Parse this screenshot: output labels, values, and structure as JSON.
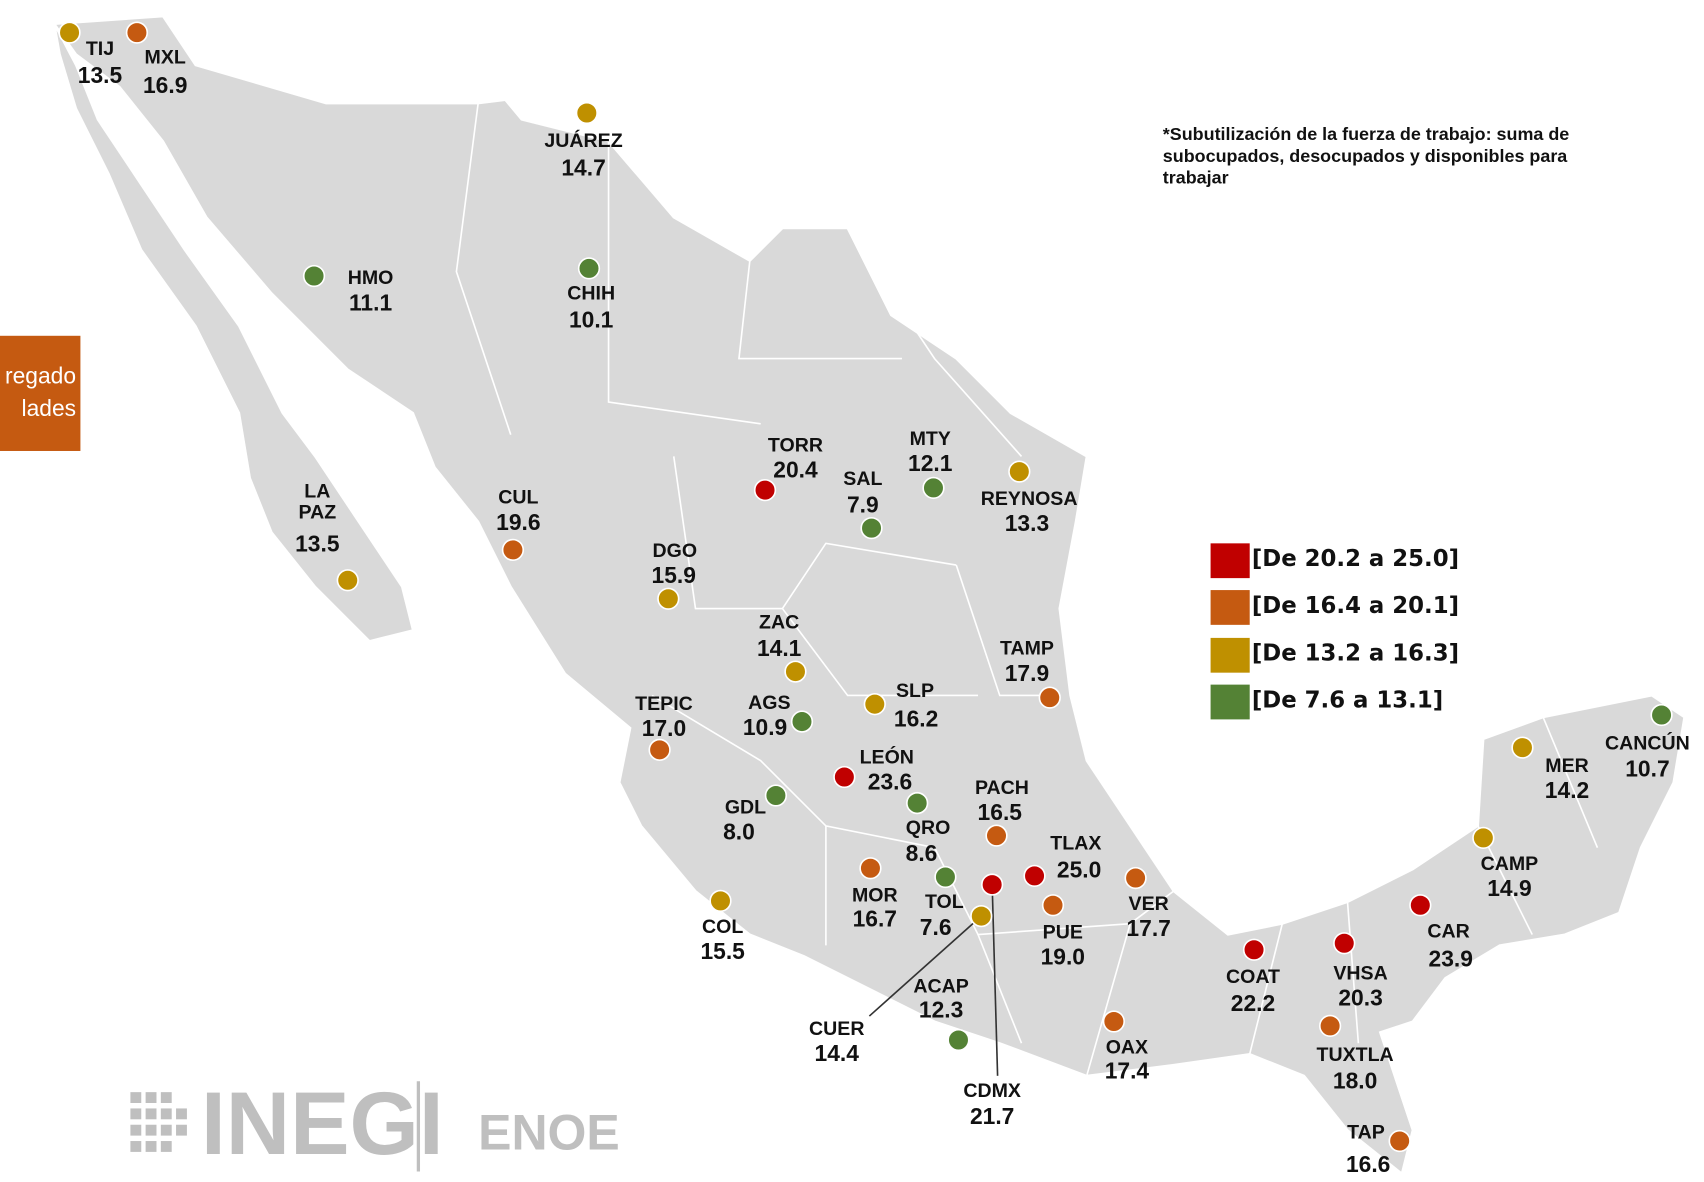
{
  "note": [
    "*Subutilización de la fuerza de trabajo: suma de",
    "subocupados, desocupados y disponibles para",
    "trabajar"
  ],
  "side_box": [
    "regado",
    "lades"
  ],
  "logo": {
    "brand": "INEGI",
    "survey": "ENOE"
  },
  "legend": [
    {
      "label": "[De 20.2 a 25.0]",
      "color": "#c00000"
    },
    {
      "label": "[De 16.4 a 20.1]",
      "color": "#c55a11"
    },
    {
      "label": "[De 13.2 a 16.3]",
      "color": "#bf9000"
    },
    {
      "label": "[De 7.6 a 13.1]",
      "color": "#548235"
    }
  ],
  "cities": [
    {
      "name": "TIJ",
      "value": "13.5",
      "range": 2
    },
    {
      "name": "MXL",
      "value": "16.9",
      "range": 1
    },
    {
      "name": "JUÁREZ",
      "value": "14.7",
      "range": 2
    },
    {
      "name": "HMO",
      "value": "11.1",
      "range": 3
    },
    {
      "name": "CHIH",
      "value": "10.1",
      "range": 3
    },
    {
      "name": "LA PAZ",
      "value": "13.5",
      "range": 2
    },
    {
      "name": "CUL",
      "value": "19.6",
      "range": 1
    },
    {
      "name": "TORR",
      "value": "20.4",
      "range": 0
    },
    {
      "name": "MTY",
      "value": "12.1",
      "range": 3
    },
    {
      "name": "SAL",
      "value": "7.9",
      "range": 3
    },
    {
      "name": "REYNOSA",
      "value": "13.3",
      "range": 2
    },
    {
      "name": "DGO",
      "value": "15.9",
      "range": 2
    },
    {
      "name": "ZAC",
      "value": "14.1",
      "range": 2
    },
    {
      "name": "TAMP",
      "value": "17.9",
      "range": 1
    },
    {
      "name": "SLP",
      "value": "16.2",
      "range": 2
    },
    {
      "name": "AGS",
      "value": "10.9",
      "range": 3
    },
    {
      "name": "TEPIC",
      "value": "17.0",
      "range": 1
    },
    {
      "name": "LEÓN",
      "value": "23.6",
      "range": 0
    },
    {
      "name": "GDL",
      "value": "8.0",
      "range": 3
    },
    {
      "name": "QRO",
      "value": "8.6",
      "range": 3
    },
    {
      "name": "PACH",
      "value": "16.5",
      "range": 1
    },
    {
      "name": "TLAX",
      "value": "25.0",
      "range": 0
    },
    {
      "name": "MOR",
      "value": "16.7",
      "range": 1
    },
    {
      "name": "TOL",
      "value": "7.6",
      "range": 3
    },
    {
      "name": "CDMX",
      "value": "21.7",
      "range": 0
    },
    {
      "name": "CUER",
      "value": "14.4",
      "range": 2
    },
    {
      "name": "PUE",
      "value": "19.0",
      "range": 1
    },
    {
      "name": "VER",
      "value": "17.7",
      "range": 1
    },
    {
      "name": "COL",
      "value": "15.5",
      "range": 2
    },
    {
      "name": "ACAP",
      "value": "12.3",
      "range": 3
    },
    {
      "name": "OAX",
      "value": "17.4",
      "range": 1
    },
    {
      "name": "COAT",
      "value": "22.2",
      "range": 0
    },
    {
      "name": "VHSA",
      "value": "20.3",
      "range": 0
    },
    {
      "name": "TUXTLA",
      "value": "18.0",
      "range": 1
    },
    {
      "name": "TAP",
      "value": "16.6",
      "range": 1
    },
    {
      "name": "CAR",
      "value": "23.9",
      "range": 0
    },
    {
      "name": "CAMP",
      "value": "14.9",
      "range": 2
    },
    {
      "name": "MER",
      "value": "14.2",
      "range": 2
    },
    {
      "name": "CANCÚN",
      "value": "10.7",
      "range": 3
    }
  ]
}
